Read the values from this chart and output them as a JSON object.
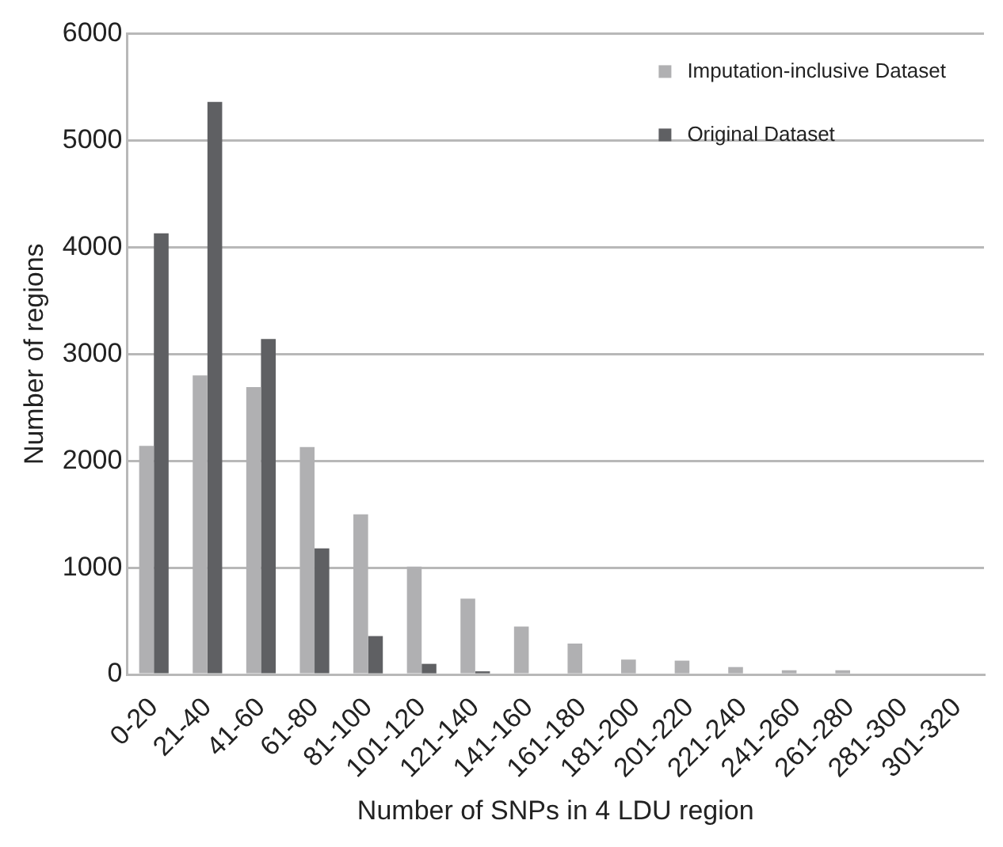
{
  "chart_data": {
    "type": "bar",
    "xlabel": "Number of SNPs in 4 LDU region",
    "ylabel": "Number of regions",
    "categories": [
      "0-20",
      "21-40",
      "41-60",
      "61-80",
      "81-100",
      "101-120",
      "121-140",
      "141-160",
      "161-180",
      "181-200",
      "201-220",
      "221-240",
      "241-260",
      "261-280",
      "281-300",
      "301-320"
    ],
    "series": [
      {
        "name": "Imputation-inclusive Dataset",
        "color": "#b0b0b2",
        "values": [
          2140,
          2800,
          2690,
          2130,
          1500,
          1010,
          710,
          450,
          290,
          140,
          130,
          70,
          40,
          40,
          0,
          0
        ]
      },
      {
        "name": "Original Dataset",
        "color": "#5f6063",
        "values": [
          4130,
          5360,
          3140,
          1180,
          360,
          100,
          30,
          0,
          0,
          0,
          0,
          0,
          0,
          0,
          0,
          0
        ]
      }
    ],
    "ylim": [
      0,
      6000
    ],
    "yticks": [
      0,
      1000,
      2000,
      3000,
      4000,
      5000,
      6000
    ],
    "grid": "y",
    "legend": "top right"
  }
}
